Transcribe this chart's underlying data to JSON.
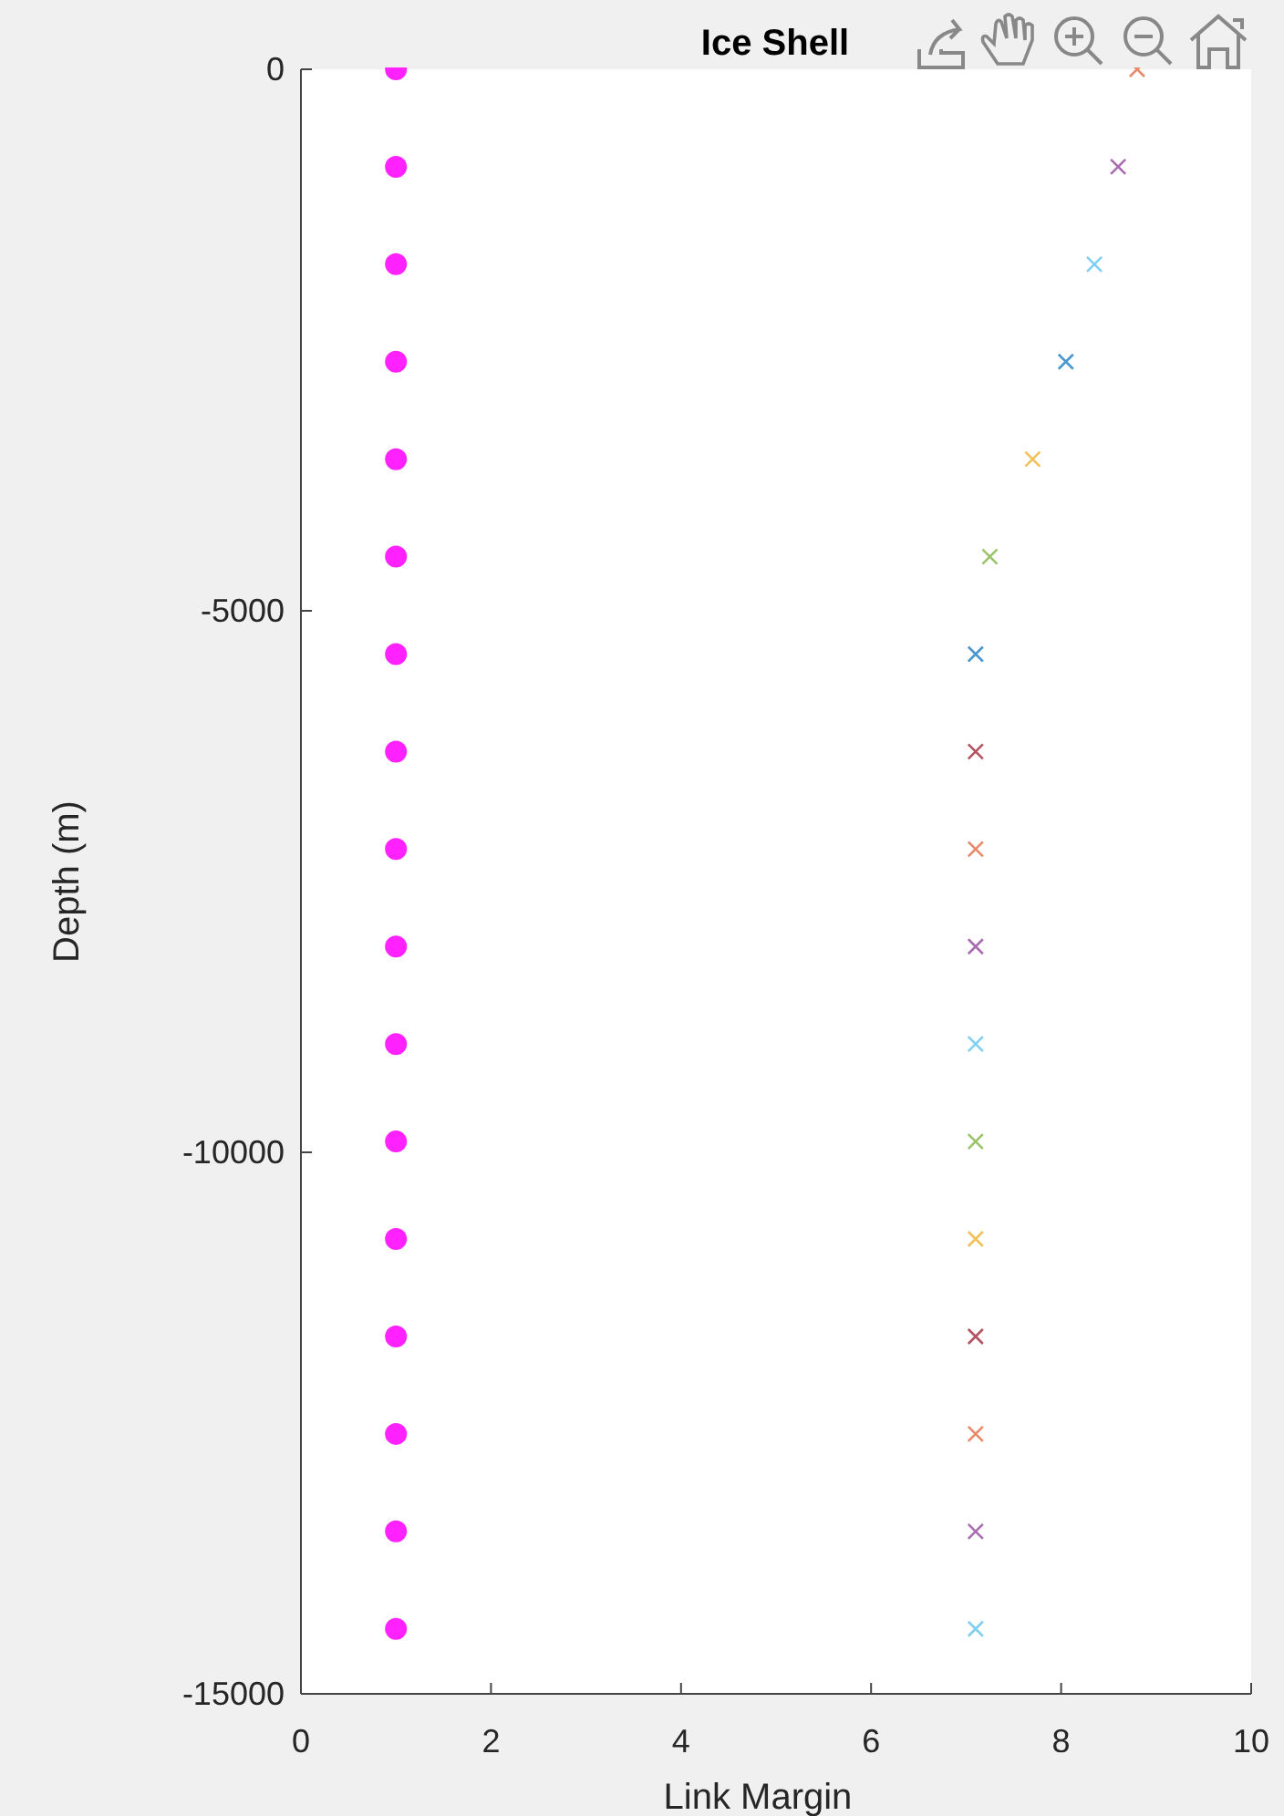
{
  "chart_data": {
    "type": "scatter",
    "title": "Ice Shell",
    "xlabel": "Link Margin",
    "ylabel": "Depth (m)",
    "xlim": [
      0,
      10
    ],
    "xticks": [
      0,
      2,
      4,
      6,
      8,
      10
    ],
    "ylim": [
      -15000,
      0
    ],
    "yticks": [
      -15000,
      -10000,
      -5000,
      0
    ],
    "series": [
      {
        "x": [
          1,
          1,
          1,
          1,
          1,
          1,
          1,
          1,
          1,
          1,
          1,
          1,
          1,
          1,
          1,
          1,
          1
        ],
        "values": [
          0,
          -900,
          -1800,
          -2700,
          -3600,
          -4500,
          -5400,
          -6300,
          -7200,
          -8100,
          -9000,
          -9900,
          -10800,
          -11700,
          -12600,
          -13500,
          -14400
        ],
        "color": "#ff22ff",
        "marker": "circle"
      },
      {
        "x": [
          8.8,
          8.6,
          8.35,
          8.05,
          7.7,
          7.25,
          7.1,
          7.1,
          7.1,
          7.1,
          7.1,
          7.1,
          7.1,
          7.1,
          7.1,
          7.1,
          7.1
        ],
        "values": [
          0,
          -900,
          -1800,
          -2700,
          -3600,
          -4500,
          -5400,
          -6300,
          -7200,
          -8100,
          -9000,
          -9900,
          -10800,
          -11700,
          -12600,
          -13500,
          -14400
        ],
        "marker": "cross",
        "colors": [
          "#e8896a",
          "#a96cb0",
          "#7fcff0",
          "#4b97d0",
          "#f2c25a",
          "#9bc46a",
          "#4b97d0",
          "#b5525f",
          "#e8896a",
          "#a96cb0",
          "#7fcff0",
          "#9bc46a",
          "#f2c25a",
          "#b5525f",
          "#e8896a",
          "#a96cb0",
          "#7fcff0"
        ]
      }
    ]
  }
}
